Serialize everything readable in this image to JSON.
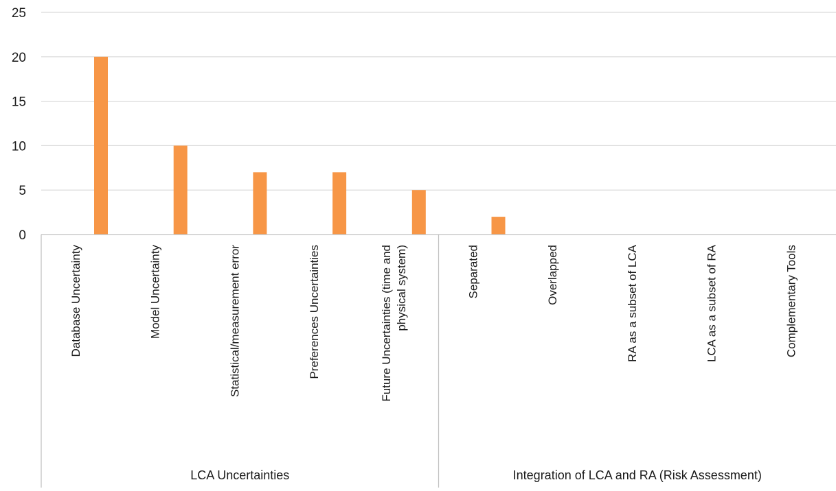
{
  "chart_data": {
    "type": "bar",
    "title": "",
    "xlabel": "",
    "ylabel": "",
    "ylim": [
      0,
      25
    ],
    "yticks": [
      0,
      5,
      10,
      15,
      20,
      25
    ],
    "grid": true,
    "legend": "none",
    "bar_color": "#F79646",
    "grid_color": "#d9d9d9",
    "axis_color": "#bfbfbf",
    "categories": [
      "Database Uncertainty",
      "Model Uncertainty",
      "Statistical/measurement error",
      "Preferences Uncertainties",
      "Future Uncertainties (time and physical system)",
      "Separated",
      "Overlapped",
      "RA as a subset of LCA",
      "LCA as a subset of RA",
      "Complementary Tools"
    ],
    "category_lines": [
      [
        "Database Uncertainty"
      ],
      [
        "Model Uncertainty"
      ],
      [
        "Statistical/measurement error"
      ],
      [
        "Preferences Uncertainties"
      ],
      [
        "Future Uncertainties (time and",
        "physical system)"
      ],
      [
        "Separated"
      ],
      [
        "Overlapped"
      ],
      [
        "RA as a subset of LCA"
      ],
      [
        "LCA as a subset of RA"
      ],
      [
        "Complementary Tools"
      ]
    ],
    "values": [
      20,
      10,
      7,
      7,
      5,
      2,
      0,
      0,
      0,
      0
    ],
    "groups": [
      {
        "label": "LCA Uncertainties",
        "start": 0,
        "end": 4
      },
      {
        "label": "Integration of LCA and RA (Risk Assessment)",
        "start": 5,
        "end": 9
      }
    ]
  }
}
